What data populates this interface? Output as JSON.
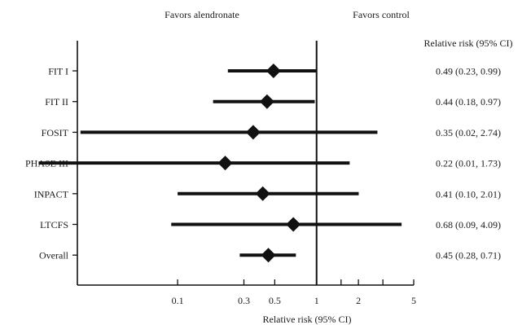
{
  "header": {
    "favors_left": "Favors alendronate",
    "favors_right": "Favors control",
    "ci_column_title": "Relative risk (95% CI)"
  },
  "chart_data": {
    "type": "forest",
    "scale": "log",
    "xlabel": "Relative risk (95% CI)",
    "xlim": [
      0.019,
      5
    ],
    "reference_value": 1,
    "x_ticks": [
      {
        "value": 0.1,
        "label": "0.1"
      },
      {
        "value": 0.3,
        "label": "0.3"
      },
      {
        "value": 0.5,
        "label": "0.5"
      },
      {
        "value": 1,
        "label": "1"
      },
      {
        "value": 1.5,
        "label": ""
      },
      {
        "value": 2,
        "label": "2"
      },
      {
        "value": 3,
        "label": ""
      },
      {
        "value": 5,
        "label": "5"
      }
    ],
    "studies": [
      {
        "name": "FIT I",
        "rr": 0.49,
        "lower": 0.23,
        "upper": 0.99,
        "ci_text": "0.49 (0.23, 0.99)"
      },
      {
        "name": "FIT II",
        "rr": 0.44,
        "lower": 0.18,
        "upper": 0.97,
        "ci_text": "0.44 (0.18, 0.97)"
      },
      {
        "name": "FOSIT",
        "rr": 0.35,
        "lower": 0.02,
        "upper": 2.74,
        "ci_text": "0.35 (0.02, 2.74)"
      },
      {
        "name": "PHASE III",
        "rr": 0.22,
        "lower": 0.01,
        "upper": 1.73,
        "ci_text": "0.22 (0.01, 1.73)"
      },
      {
        "name": "INPACT",
        "rr": 0.41,
        "lower": 0.1,
        "upper": 2.01,
        "ci_text": "0.41 (0.10, 2.01)"
      },
      {
        "name": "LTCFS",
        "rr": 0.68,
        "lower": 0.09,
        "upper": 4.09,
        "ci_text": "0.68 (0.09, 4.09)"
      },
      {
        "name": "Overall",
        "rr": 0.45,
        "lower": 0.28,
        "upper": 0.71,
        "ci_text": "0.45 (0.28, 0.71)"
      }
    ]
  }
}
